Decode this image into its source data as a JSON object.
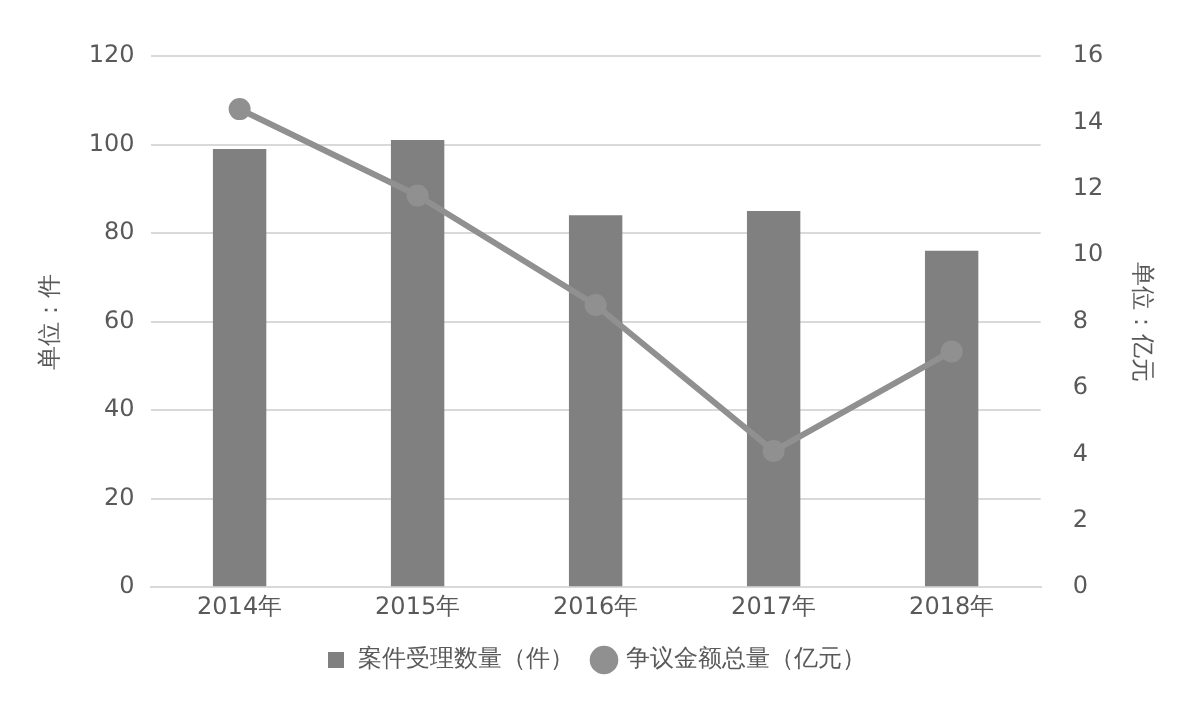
{
  "chart_data": {
    "type": "bar",
    "categories": [
      "2014年",
      "2015年",
      "2016年",
      "2017年",
      "2018年"
    ],
    "series": [
      {
        "name": "案件受理数量（件）",
        "color": "#808080",
        "values": [
          99,
          101,
          84,
          85,
          76
        ]
      },
      {
        "name": "争议金额总量（亿元）",
        "type": "line",
        "axis": "y2",
        "color": "#909090",
        "marker": "circle",
        "values": [
          14.4,
          11.8,
          8.5,
          4.1,
          7.1
        ]
      }
    ],
    "ylabel": "单位：件",
    "y2label": "单位：亿元",
    "ylim": [
      0,
      120
    ],
    "yticks": [
      0,
      20,
      40,
      60,
      80,
      100,
      120
    ],
    "y2lim": [
      0,
      16
    ],
    "y2ticks": [
      0,
      2,
      4,
      6,
      8,
      10,
      12,
      14,
      16
    ],
    "grid": "y",
    "legend": "bottom"
  }
}
